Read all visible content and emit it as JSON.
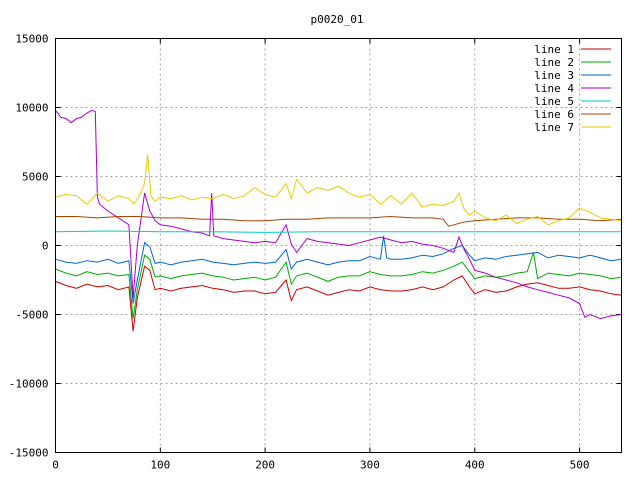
{
  "chart_data": {
    "type": "line",
    "title": "p0020_01",
    "xlabel": "",
    "ylabel": "",
    "xlim": [
      0,
      540
    ],
    "ylim": [
      -15000,
      15000
    ],
    "x_ticks": [
      0,
      100,
      200,
      300,
      400,
      500
    ],
    "y_ticks": [
      -15000,
      -10000,
      -5000,
      0,
      5000,
      10000,
      15000
    ],
    "grid": true,
    "legend_position": "top-right",
    "series": [
      {
        "name": "line 1",
        "color": "#cc0000",
        "x": [
          0,
          10,
          20,
          30,
          40,
          50,
          60,
          70,
          74,
          78,
          85,
          90,
          95,
          100,
          110,
          120,
          130,
          140,
          150,
          160,
          170,
          180,
          190,
          200,
          210,
          220,
          225,
          230,
          240,
          250,
          260,
          270,
          280,
          290,
          300,
          310,
          320,
          330,
          340,
          350,
          360,
          370,
          380,
          388,
          395,
          400,
          410,
          420,
          430,
          440,
          450,
          460,
          470,
          480,
          490,
          500,
          510,
          520,
          530,
          540
        ],
        "y": [
          -2600,
          -2900,
          -3100,
          -2800,
          -3000,
          -2900,
          -3200,
          -3000,
          -6200,
          -3800,
          -1500,
          -1800,
          -3200,
          -3100,
          -3300,
          -3100,
          -3000,
          -2900,
          -3100,
          -3200,
          -3400,
          -3300,
          -3300,
          -3500,
          -3400,
          -2500,
          -4000,
          -3200,
          -3000,
          -3300,
          -3600,
          -3400,
          -3200,
          -3300,
          -3000,
          -3200,
          -3300,
          -3300,
          -3200,
          -3000,
          -3200,
          -3000,
          -2500,
          -2200,
          -3000,
          -3500,
          -3200,
          -3400,
          -3300,
          -3000,
          -2800,
          -2700,
          -2900,
          -3100,
          -3100,
          -3000,
          -3200,
          -3300,
          -3500,
          -3600
        ]
      },
      {
        "name": "line 2",
        "color": "#00aa00",
        "x": [
          0,
          10,
          20,
          30,
          40,
          50,
          60,
          70,
          74,
          78,
          85,
          90,
          95,
          100,
          110,
          120,
          130,
          140,
          150,
          160,
          170,
          180,
          190,
          200,
          210,
          220,
          225,
          230,
          240,
          250,
          260,
          270,
          280,
          290,
          300,
          310,
          320,
          330,
          340,
          350,
          360,
          370,
          380,
          388,
          395,
          400,
          410,
          420,
          430,
          440,
          450,
          456,
          460,
          470,
          480,
          490,
          500,
          510,
          520,
          530,
          540
        ],
        "y": [
          -1700,
          -2000,
          -2200,
          -1900,
          -2100,
          -2000,
          -2200,
          -2100,
          -5300,
          -3200,
          -700,
          -1000,
          -2300,
          -2200,
          -2400,
          -2200,
          -2100,
          -2000,
          -2200,
          -2300,
          -2500,
          -2400,
          -2300,
          -2500,
          -2300,
          -1200,
          -2800,
          -2200,
          -2000,
          -2300,
          -2600,
          -2300,
          -2200,
          -2200,
          -1900,
          -2100,
          -2200,
          -2200,
          -2100,
          -1900,
          -2000,
          -1800,
          -1500,
          -1200,
          -1900,
          -2400,
          -2200,
          -2300,
          -2200,
          -2000,
          -1900,
          -500,
          -2400,
          -2000,
          -2100,
          -2200,
          -2000,
          -2100,
          -2200,
          -2400,
          -2300
        ]
      },
      {
        "name": "line 3",
        "color": "#0066cc",
        "x": [
          0,
          10,
          20,
          30,
          40,
          50,
          60,
          70,
          74,
          78,
          85,
          90,
          95,
          100,
          110,
          120,
          130,
          140,
          150,
          160,
          170,
          180,
          190,
          200,
          210,
          220,
          225,
          230,
          240,
          250,
          260,
          270,
          280,
          290,
          300,
          310,
          313,
          316,
          320,
          330,
          340,
          350,
          360,
          370,
          380,
          388,
          395,
          400,
          410,
          420,
          430,
          440,
          450,
          460,
          470,
          480,
          490,
          500,
          510,
          520,
          530,
          540
        ],
        "y": [
          -1000,
          -1200,
          -1300,
          -1100,
          -1200,
          -1000,
          -1300,
          -1100,
          -4200,
          -2500,
          200,
          -100,
          -1300,
          -1200,
          -1400,
          -1200,
          -1100,
          -1000,
          -1200,
          -1300,
          -1400,
          -1300,
          -1200,
          -1300,
          -1200,
          -300,
          -1700,
          -1200,
          -1000,
          -1200,
          -1400,
          -1200,
          -1100,
          -1100,
          -800,
          -1000,
          700,
          -900,
          -1000,
          -1000,
          -900,
          -700,
          -800,
          -600,
          -200,
          0,
          -700,
          -1100,
          -900,
          -1000,
          -800,
          -700,
          -600,
          -500,
          -900,
          -700,
          -800,
          -900,
          -700,
          -900,
          -1100,
          -1000
        ]
      },
      {
        "name": "line 4",
        "color": "#aa00cc",
        "x": [
          0,
          5,
          10,
          15,
          20,
          25,
          30,
          35,
          38,
          40,
          42,
          50,
          60,
          70,
          74,
          78,
          85,
          90,
          95,
          100,
          110,
          120,
          130,
          140,
          147,
          149,
          151,
          160,
          170,
          180,
          190,
          200,
          210,
          220,
          225,
          230,
          240,
          250,
          260,
          270,
          280,
          290,
          300,
          310,
          320,
          330,
          340,
          350,
          360,
          370,
          380,
          385,
          390,
          395,
          400,
          410,
          420,
          430,
          440,
          450,
          460,
          470,
          480,
          490,
          500,
          505,
          510,
          520,
          530,
          540
        ],
        "y": [
          9800,
          9300,
          9200,
          8900,
          9200,
          9300,
          9600,
          9800,
          9700,
          3500,
          3000,
          2500,
          2000,
          1500,
          -3800,
          0,
          3800,
          2500,
          1800,
          1500,
          1400,
          1200,
          1000,
          900,
          700,
          3800,
          700,
          500,
          400,
          300,
          200,
          300,
          200,
          1500,
          100,
          -500,
          500,
          300,
          200,
          100,
          0,
          200,
          400,
          600,
          400,
          200,
          300,
          100,
          0,
          -200,
          -500,
          600,
          -300,
          -1000,
          -1800,
          -2000,
          -2300,
          -2500,
          -2700,
          -3000,
          -3200,
          -3400,
          -3600,
          -3800,
          -4200,
          -5200,
          -5000,
          -5300,
          -5100,
          -5000
        ]
      },
      {
        "name": "line 5",
        "color": "#00cccc",
        "x": [
          0,
          50,
          100,
          150,
          200,
          250,
          300,
          350,
          400,
          450,
          500,
          540
        ],
        "y": [
          1000,
          1050,
          1000,
          1000,
          950,
          1000,
          1000,
          1000,
          1000,
          1000,
          1000,
          1000
        ]
      },
      {
        "name": "line 6",
        "color": "#aa4400",
        "x": [
          0,
          20,
          40,
          60,
          80,
          100,
          120,
          140,
          160,
          180,
          200,
          220,
          240,
          260,
          280,
          300,
          320,
          340,
          360,
          370,
          375,
          380,
          390,
          400,
          420,
          440,
          460,
          480,
          500,
          520,
          540
        ],
        "y": [
          2100,
          2100,
          2000,
          2100,
          2100,
          2000,
          2000,
          1900,
          1900,
          1800,
          1800,
          1900,
          1900,
          2000,
          2000,
          2000,
          2100,
          2000,
          2000,
          1900,
          1400,
          1500,
          1700,
          1800,
          1900,
          2000,
          2000,
          1900,
          1900,
          1800,
          1900
        ]
      },
      {
        "name": "line 7",
        "color": "#e6cc00",
        "x": [
          0,
          10,
          20,
          30,
          40,
          50,
          60,
          70,
          75,
          80,
          85,
          88,
          91,
          95,
          100,
          110,
          120,
          130,
          140,
          150,
          160,
          170,
          180,
          190,
          200,
          210,
          220,
          225,
          230,
          240,
          250,
          260,
          270,
          280,
          290,
          300,
          310,
          320,
          330,
          340,
          350,
          360,
          370,
          380,
          385,
          390,
          395,
          400,
          410,
          420,
          430,
          440,
          450,
          460,
          470,
          480,
          490,
          500,
          510,
          520,
          530,
          540
        ],
        "y": [
          3500,
          3700,
          3600,
          3000,
          3800,
          3200,
          3600,
          3400,
          3000,
          3600,
          4500,
          6600,
          3600,
          3200,
          3500,
          3400,
          3600,
          3300,
          3500,
          3400,
          3700,
          3400,
          3600,
          4200,
          3700,
          3500,
          4500,
          3400,
          4800,
          3800,
          4200,
          4000,
          4300,
          3800,
          3500,
          3700,
          3000,
          3600,
          3000,
          3800,
          2800,
          3000,
          2900,
          3200,
          3800,
          2600,
          2200,
          2500,
          2000,
          1800,
          2200,
          1600,
          1900,
          2100,
          1500,
          1800,
          2000,
          2700,
          2400,
          2000,
          1900,
          1800
        ]
      }
    ]
  }
}
